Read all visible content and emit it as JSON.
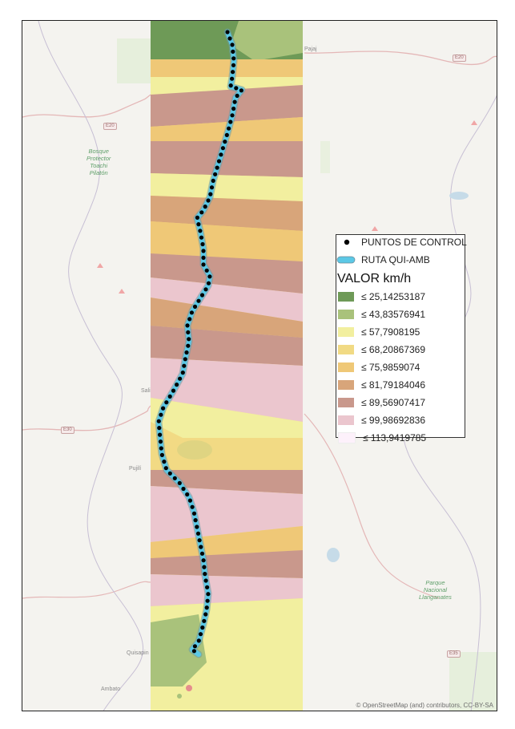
{
  "legend": {
    "points_label": "PUNTOS DE CONTROL",
    "route_label": "RUTA QUI-AMB",
    "title": "VALOR km/h",
    "classes": [
      {
        "label": "≤ 25,14253187",
        "color": "#6e9a57"
      },
      {
        "label": "≤ 43,83576941",
        "color": "#a9c27b"
      },
      {
        "label": "≤ 57,7908195",
        "color": "#f2ef9f"
      },
      {
        "label": "≤ 68,20867369",
        "color": "#f1da84"
      },
      {
        "label": "≤ 75,9859074",
        "color": "#efc877"
      },
      {
        "label": "≤ 81,79184046",
        "color": "#d8a57a"
      },
      {
        "label": "≤ 89,56907417",
        "color": "#c9988c"
      },
      {
        "label": "≤ 99,98692836",
        "color": "#ebc6ce"
      },
      {
        "label": "≤ 113,9419785",
        "color": "#fdf1fb"
      }
    ]
  },
  "basemap": {
    "park_labels": [
      "Bosque\nProtector\nToachi\nPilatón",
      "Parque\nNacional\nLlanganates"
    ],
    "place_labels": [
      "Quisapin",
      "Pujilí",
      "Ambato",
      "Pajaj",
      "Sali"
    ],
    "road_shields": [
      "E20",
      "E20",
      "E30",
      "E35"
    ],
    "attribution": "© OpenStreetMap (and) contributors, CC-BY-SA"
  },
  "colors": {
    "route": "#5bc8e6",
    "points": "#000000",
    "basemap_bg": "#f4f3ef"
  }
}
